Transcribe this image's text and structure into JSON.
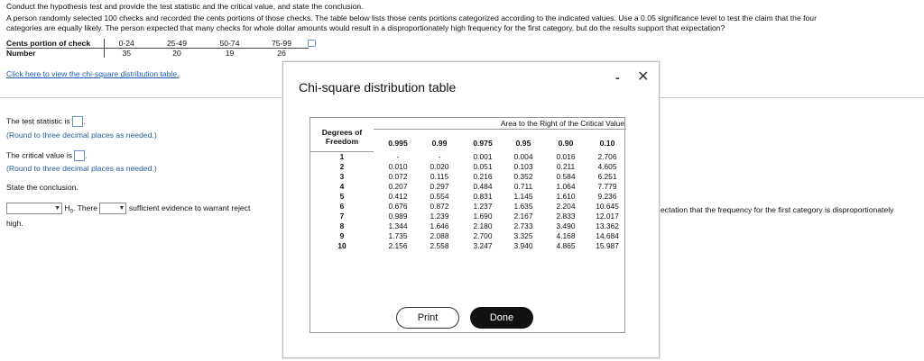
{
  "question": {
    "line1": "Conduct the hypothesis test and provide the test statistic and the critical value, and state the conclusion.",
    "line2": "A person randomly selected 100 checks and recorded the cents portions of those checks. The table below lists those cents portions categorized according to the indicated values. Use a 0.05 significance level to test the claim that the four",
    "line3": "categories are equally likely. The person expected that many checks for whole dollar amounts would result in a disproportionately high frequency for the first category, but do the results support that expectation?"
  },
  "cents_table": {
    "row1_label": "Cents portion of check",
    "row2_label": "Number",
    "categories": [
      "0-24",
      "25-49",
      "50-74",
      "75-99"
    ],
    "counts": [
      "35",
      "20",
      "19",
      "26"
    ]
  },
  "link_text": "Click here to view the chi-square distribution table.",
  "answers": {
    "test_stat_label": "The test statistic is",
    "test_stat_hint": "(Round to three decimal places as needed.)",
    "crit_label": "The critical value is",
    "crit_hint": "(Round to three decimal places as needed.)",
    "conclusion_label": "State the conclusion.",
    "h0_text": "H",
    "h0_sub": "0",
    "there_text": ". There",
    "sufficient_text": "sufficient evidence to warrant reject",
    "right_tail_text": "ectation that the frequency for the first category is disproportionately",
    "high_text": "high."
  },
  "modal": {
    "title": "Chi-square distribution table",
    "minimize": "-",
    "close": "✕",
    "area_header": "Area to the Right of the Critical Value",
    "df_header_line1": "Degrees of",
    "df_header_line2": "Freedom",
    "levels": [
      "0.995",
      "0.99",
      "0.975",
      "0.95",
      "0.90",
      "0.10"
    ],
    "rows": [
      {
        "df": "1",
        "v": [
          "-",
          "-",
          "0.001",
          "0.004",
          "0.016",
          "2.706"
        ]
      },
      {
        "df": "2",
        "v": [
          "0.010",
          "0.020",
          "0.051",
          "0.103",
          "0.211",
          "4.605"
        ]
      },
      {
        "df": "3",
        "v": [
          "0.072",
          "0.115",
          "0.216",
          "0.352",
          "0.584",
          "6.251"
        ]
      },
      {
        "df": "4",
        "v": [
          "0.207",
          "0.297",
          "0.484",
          "0.711",
          "1.064",
          "7.779"
        ]
      },
      {
        "df": "5",
        "v": [
          "0.412",
          "0.554",
          "0.831",
          "1.145",
          "1.610",
          "9.236"
        ]
      },
      {
        "df": "6",
        "v": [
          "0.676",
          "0.872",
          "1.237",
          "1.635",
          "2.204",
          "10.645"
        ]
      },
      {
        "df": "7",
        "v": [
          "0.989",
          "1.239",
          "1.690",
          "2.167",
          "2.833",
          "12.017"
        ]
      },
      {
        "df": "8",
        "v": [
          "1.344",
          "1.646",
          "2.180",
          "2.733",
          "3.490",
          "13.362"
        ]
      },
      {
        "df": "9",
        "v": [
          "1.735",
          "2.088",
          "2.700",
          "3.325",
          "4.168",
          "14.684"
        ]
      },
      {
        "df": "10",
        "v": [
          "2.156",
          "2.558",
          "3.247",
          "3.940",
          "4.865",
          "15.987"
        ]
      }
    ],
    "print_label": "Print",
    "done_label": "Done"
  }
}
